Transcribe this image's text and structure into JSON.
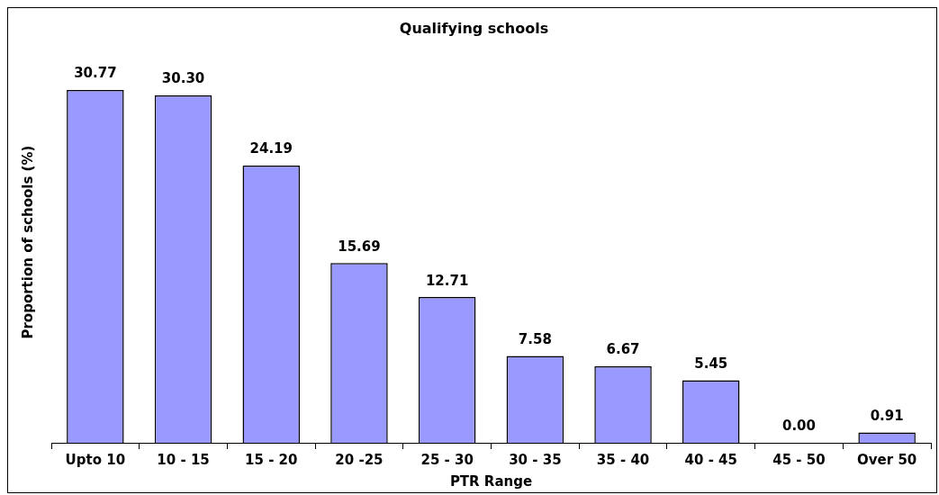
{
  "chart_data": {
    "type": "bar",
    "title": "Qualifying schools",
    "xlabel": "PTR Range",
    "ylabel": "Proportion of schools (%)",
    "categories": [
      "Upto 10",
      "10 - 15",
      "15 - 20",
      "20 -25",
      "25 - 30",
      "30 - 35",
      "35 - 40",
      "40 - 45",
      "45 - 50",
      "Over 50"
    ],
    "values": [
      30.77,
      30.3,
      24.19,
      15.69,
      12.71,
      7.58,
      6.67,
      5.45,
      0.0,
      0.91
    ],
    "value_labels": [
      "30.77",
      "30.30",
      "24.19",
      "15.69",
      "12.71",
      "7.58",
      "6.67",
      "5.45",
      "0.00",
      "0.91"
    ],
    "color": "#9999ff",
    "grid": false,
    "legend": false,
    "tick_labels": "x"
  }
}
